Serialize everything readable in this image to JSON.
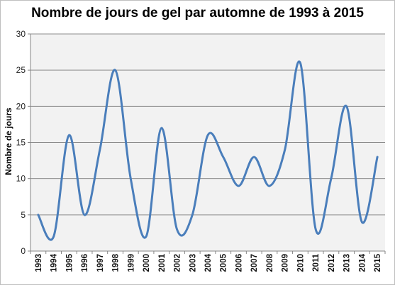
{
  "chart_data": {
    "type": "line",
    "title": "Nombre de jours de gel par automne de 1993 à 2015",
    "xlabel": "",
    "ylabel": "Nombre de jours",
    "categories": [
      "1993",
      "1994",
      "1995",
      "1996",
      "1997",
      "1998",
      "1999",
      "2000",
      "2001",
      "2002",
      "2003",
      "2004",
      "2005",
      "2006",
      "2007",
      "2008",
      "2009",
      "2010",
      "2011",
      "2012",
      "2013",
      "2014",
      "2015"
    ],
    "series": [
      {
        "values": [
          5,
          2,
          16,
          5,
          14,
          25,
          10,
          2,
          17,
          3,
          5,
          16,
          13,
          9,
          13,
          9,
          14,
          26,
          3,
          10,
          20,
          4,
          13
        ]
      }
    ],
    "ylim": [
      0,
      30
    ],
    "yticks": [
      0,
      5,
      10,
      15,
      20,
      25,
      30
    ],
    "grid": true,
    "smooth": true,
    "colors": {
      "line": "#4a7ebb",
      "plot_background": "#f2f2f2",
      "gridline": "#8c8c8c"
    }
  }
}
